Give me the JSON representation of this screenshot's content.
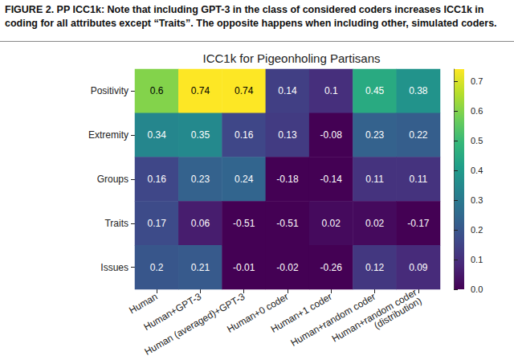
{
  "chart_data": {
    "type": "heatmap",
    "caption": "FIGURE 2. PP ICC1k: Note that including GPT-3 in the class of considered coders increases ICC1k in coding for all attributes except “Traits”. The opposite happens when including other, simulated coders.",
    "title": "ICC1k for Pigeonholing Partisans",
    "categories": [
      "Human",
      "Human+GPT-3",
      "Human (averaged)+GPT-3",
      "Human+0 coder",
      "Human+1 coder",
      "Human+random coder",
      "Human+random coder\n(distribution)"
    ],
    "y_categories": [
      "Positivity",
      "Extremity",
      "Groups",
      "Traits",
      "Issues"
    ],
    "values": [
      [
        0.6,
        0.74,
        0.74,
        0.14,
        0.1,
        0.45,
        0.38
      ],
      [
        0.34,
        0.35,
        0.16,
        0.13,
        -0.08,
        0.23,
        0.22
      ],
      [
        0.16,
        0.23,
        0.24,
        -0.18,
        -0.14,
        0.11,
        0.11
      ],
      [
        0.17,
        0.06,
        -0.51,
        -0.51,
        0.02,
        0.02,
        -0.17
      ],
      [
        0.2,
        0.21,
        -0.01,
        -0.02,
        -0.26,
        0.12,
        0.09
      ]
    ],
    "colorbar": {
      "range": [
        0,
        0.74
      ],
      "ticks": [
        {
          "value": 0,
          "label": "0.0"
        },
        0.1,
        0.2,
        0.3,
        0.4,
        0.5,
        0.6,
        0.7
      ]
    },
    "data_labels": true
  }
}
